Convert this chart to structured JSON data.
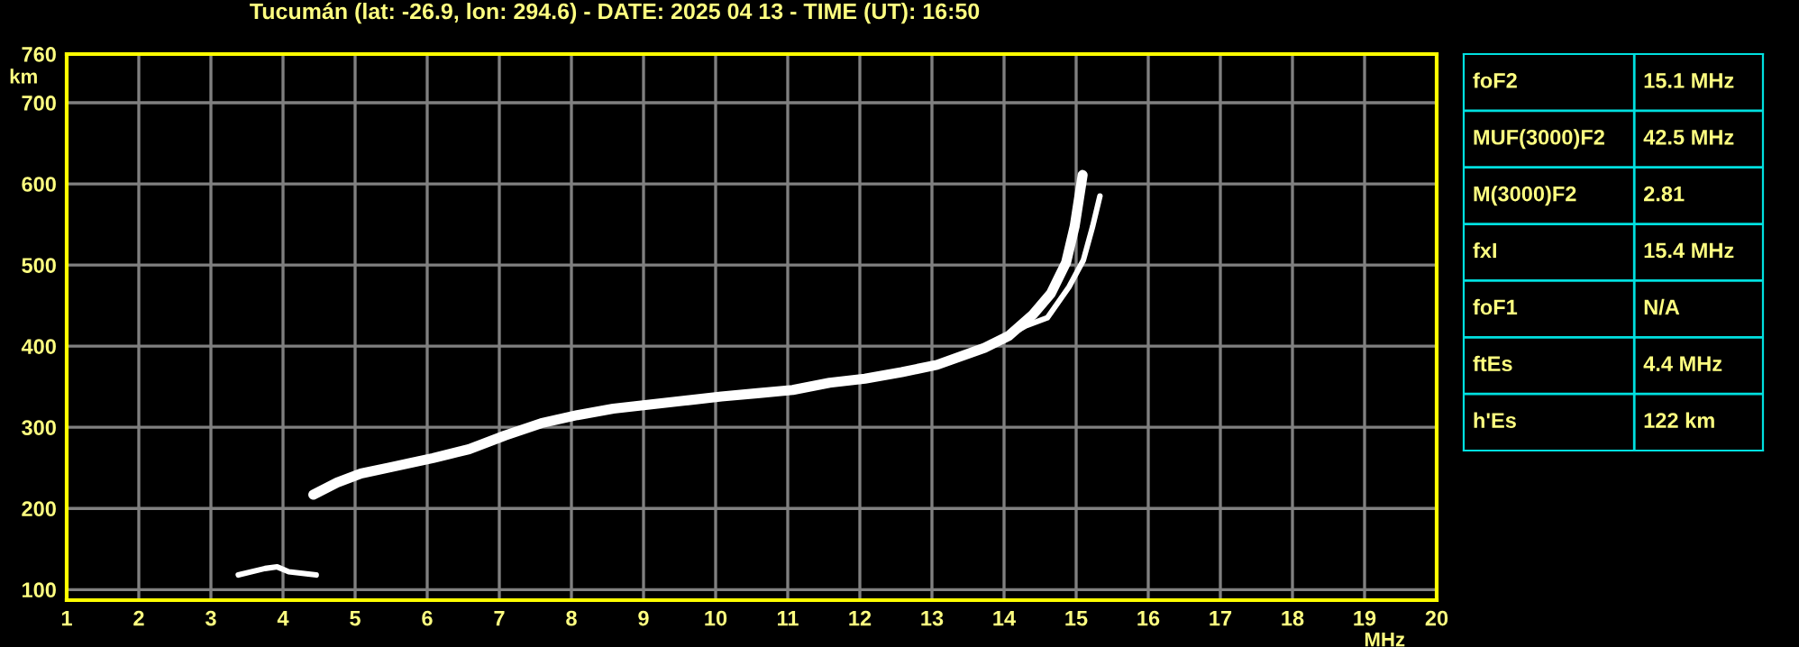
{
  "chart_data": [
    {
      "type": "line",
      "title": "Tucumán (lat: -26.9, lon: 294.6) - DATE: 2025 04 13 - TIME (UT): 16:50",
      "xlabel": "MHz",
      "ylabel": "km",
      "xlim": [
        1,
        20
      ],
      "ylim": [
        87,
        760
      ],
      "xticks": [
        1,
        2,
        3,
        4,
        5,
        6,
        7,
        8,
        9,
        10,
        11,
        12,
        13,
        14,
        15,
        16,
        17,
        18,
        19,
        20
      ],
      "yticks": [
        100,
        200,
        300,
        400,
        500,
        600,
        700,
        760
      ],
      "grid": true,
      "line_style": "solid",
      "marker": "none",
      "series": [
        {
          "color": "#ffffff",
          "x": [
            4.42,
            4.75,
            5.08,
            5.5,
            6.08,
            6.58,
            7.08,
            7.58,
            8.08,
            8.58,
            9.08,
            9.58,
            10.08,
            10.58,
            11.07,
            11.58,
            12.07,
            12.58,
            13.07,
            13.73,
            14.07,
            14.4,
            14.65,
            14.86,
            14.98,
            15.09
          ],
          "values": [
            217,
            232,
            243,
            251,
            262,
            273,
            290,
            305,
            315,
            323,
            328,
            333,
            338,
            342,
            346,
            355,
            360,
            368,
            377,
            398,
            413,
            439,
            465,
            503,
            548,
            611
          ]
        },
        {
          "color": "#ffffff",
          "x": [
            14.07,
            14.3,
            14.6,
            14.9,
            15.1,
            15.23,
            15.33
          ],
          "values": [
            413,
            425,
            435,
            473,
            506,
            548,
            585
          ]
        },
        {
          "color": "#ffffff",
          "x": [
            3.38,
            3.75,
            3.92,
            4.08,
            4.46
          ],
          "values": [
            118,
            126,
            128,
            122,
            118
          ]
        }
      ]
    },
    {
      "type": "other",
      "annotations": [
        "foF2",
        "15.1 MHz",
        "MUF(3000)F2",
        "42.5 MHz",
        "M(3000)F2",
        "2.81",
        "fxI",
        "15.4 MHz",
        "foF1",
        "N/A",
        "ftEs",
        "4.4 MHz",
        "h'Es",
        "122 km"
      ]
    }
  ]
}
